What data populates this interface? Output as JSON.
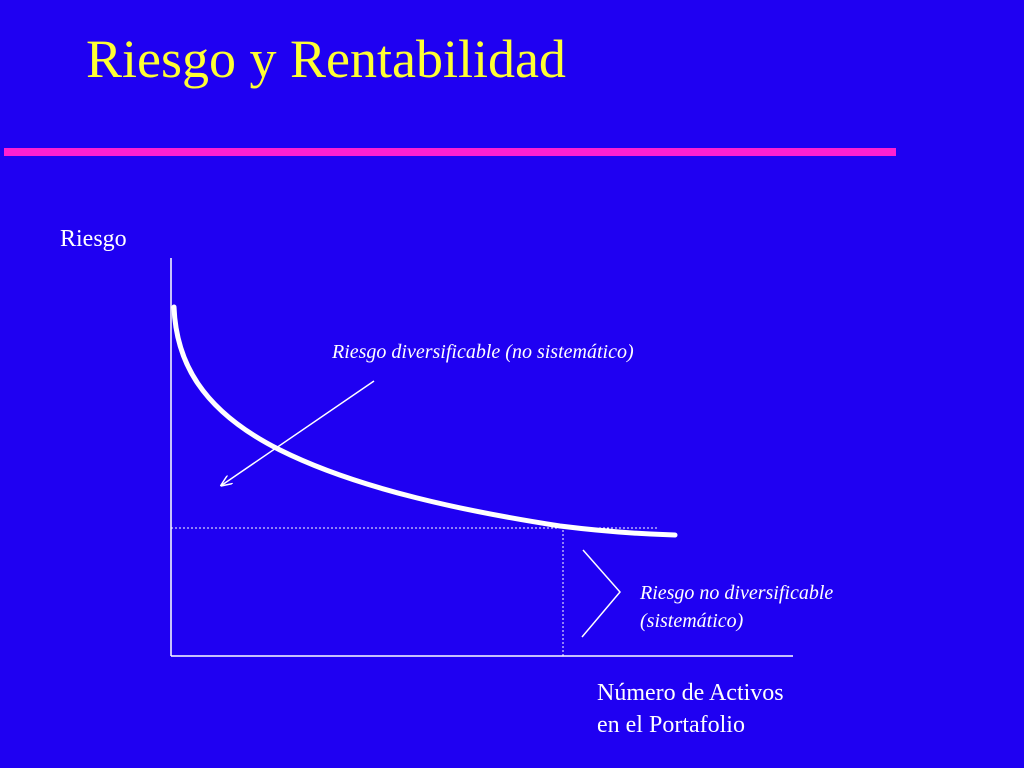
{
  "slide": {
    "title": "Riesgo y Rentabilidad",
    "accent_color": "#ff1fd2",
    "title_color": "#ffff33",
    "background_color": "#1f00f2"
  },
  "diagram": {
    "y_axis_label": "Riesgo",
    "x_axis_label_line1": "Número de Activos",
    "x_axis_label_line2": "en el Portafolio",
    "diversifiable_label": "Riesgo diversificable (no sistemático)",
    "non_diversifiable_label_line1": "Riesgo no diversificable",
    "non_diversifiable_label_line2": "(sistemático)"
  }
}
